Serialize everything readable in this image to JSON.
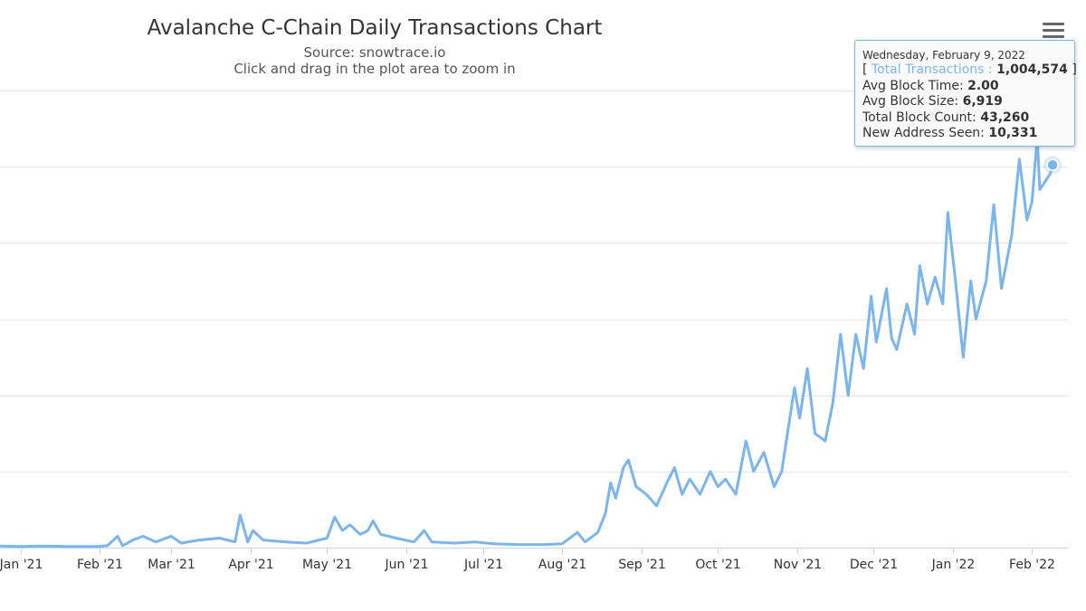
{
  "header": {
    "title": "Avalanche C-Chain Daily Transactions Chart",
    "subtitle": "Source: snowtrace.io",
    "hint": "Click and drag in the plot area to zoom in"
  },
  "menu": {
    "icon": "hamburger-menu-icon"
  },
  "colors": {
    "series": "#7cb5ec",
    "grid": "#e6e6e6",
    "axis": "#ccd6eb",
    "text": "#333333"
  },
  "tooltip": {
    "date": "Wednesday, February 9, 2022",
    "open_bracket": "[",
    "series_name": "Total Transactions",
    "separator": ":",
    "series_value": "1,004,574",
    "close_bracket": "]",
    "rows": [
      {
        "label": "Avg Block Time:",
        "value": "2.00"
      },
      {
        "label": "Avg Block Size:",
        "value": "6,919"
      },
      {
        "label": "Total Block Count:",
        "value": "43,260"
      },
      {
        "label": "New Address Seen:",
        "value": "10,331"
      }
    ]
  },
  "chart_data": {
    "type": "line",
    "title": "Avalanche C-Chain Daily Transactions Chart",
    "subtitle": "Source: snowtrace.io",
    "xlabel": "",
    "ylabel": "",
    "grid": true,
    "y_gridlines": 6,
    "ylim": [
      0,
      1200000
    ],
    "xlim": [
      "2020-12-24",
      "2022-02-15"
    ],
    "x_tick_labels": [
      "Jan '21",
      "Feb '21",
      "Mar '21",
      "Apr '21",
      "May '21",
      "Jun '21",
      "Jul '21",
      "Aug '21",
      "Sep '21",
      "Oct '21",
      "Nov '21",
      "Dec '21",
      "Jan '22",
      "Feb '22"
    ],
    "x_tick_dates": [
      "2021-01-01",
      "2021-02-01",
      "2021-03-01",
      "2021-04-01",
      "2021-05-01",
      "2021-06-01",
      "2021-07-01",
      "2021-08-01",
      "2021-09-01",
      "2021-10-01",
      "2021-11-01",
      "2021-12-01",
      "2022-01-01",
      "2022-02-01"
    ],
    "highlight": {
      "x": "2022-02-09",
      "y": 1004574
    },
    "series": [
      {
        "name": "Total Transactions",
        "color": "#7cb5ec",
        "points": [
          [
            "2020-12-24",
            4000
          ],
          [
            "2021-01-01",
            3000
          ],
          [
            "2021-01-10",
            4000
          ],
          [
            "2021-01-20",
            3000
          ],
          [
            "2021-01-31",
            3000
          ],
          [
            "2021-02-04",
            5000
          ],
          [
            "2021-02-08",
            30000
          ],
          [
            "2021-02-10",
            5000
          ],
          [
            "2021-02-14",
            20000
          ],
          [
            "2021-02-18",
            30000
          ],
          [
            "2021-02-23",
            15000
          ],
          [
            "2021-03-01",
            30000
          ],
          [
            "2021-03-05",
            12000
          ],
          [
            "2021-03-12",
            20000
          ],
          [
            "2021-03-20",
            25000
          ],
          [
            "2021-03-26",
            15000
          ],
          [
            "2021-03-28",
            85000
          ],
          [
            "2021-03-31",
            15000
          ],
          [
            "2021-04-02",
            45000
          ],
          [
            "2021-04-06",
            20000
          ],
          [
            "2021-04-15",
            15000
          ],
          [
            "2021-04-23",
            12000
          ],
          [
            "2021-05-01",
            25000
          ],
          [
            "2021-05-04",
            80000
          ],
          [
            "2021-05-07",
            45000
          ],
          [
            "2021-05-10",
            60000
          ],
          [
            "2021-05-14",
            35000
          ],
          [
            "2021-05-17",
            45000
          ],
          [
            "2021-05-19",
            70000
          ],
          [
            "2021-05-22",
            35000
          ],
          [
            "2021-05-28",
            25000
          ],
          [
            "2021-06-04",
            15000
          ],
          [
            "2021-06-08",
            45000
          ],
          [
            "2021-06-11",
            15000
          ],
          [
            "2021-06-20",
            12000
          ],
          [
            "2021-06-28",
            15000
          ],
          [
            "2021-07-05",
            10000
          ],
          [
            "2021-07-15",
            8000
          ],
          [
            "2021-07-25",
            8000
          ],
          [
            "2021-08-01",
            10000
          ],
          [
            "2021-08-07",
            40000
          ],
          [
            "2021-08-10",
            15000
          ],
          [
            "2021-08-15",
            40000
          ],
          [
            "2021-08-18",
            90000
          ],
          [
            "2021-08-20",
            170000
          ],
          [
            "2021-08-22",
            130000
          ],
          [
            "2021-08-25",
            210000
          ],
          [
            "2021-08-27",
            230000
          ],
          [
            "2021-08-30",
            160000
          ],
          [
            "2021-09-03",
            140000
          ],
          [
            "2021-09-07",
            110000
          ],
          [
            "2021-09-11",
            170000
          ],
          [
            "2021-09-14",
            210000
          ],
          [
            "2021-09-17",
            140000
          ],
          [
            "2021-09-20",
            180000
          ],
          [
            "2021-09-24",
            140000
          ],
          [
            "2021-09-28",
            200000
          ],
          [
            "2021-10-01",
            160000
          ],
          [
            "2021-10-04",
            180000
          ],
          [
            "2021-10-08",
            140000
          ],
          [
            "2021-10-12",
            280000
          ],
          [
            "2021-10-15",
            200000
          ],
          [
            "2021-10-19",
            250000
          ],
          [
            "2021-10-23",
            160000
          ],
          [
            "2021-10-26",
            200000
          ],
          [
            "2021-10-28",
            290000
          ],
          [
            "2021-10-31",
            420000
          ],
          [
            "2021-11-02",
            340000
          ],
          [
            "2021-11-05",
            470000
          ],
          [
            "2021-11-08",
            300000
          ],
          [
            "2021-11-12",
            280000
          ],
          [
            "2021-11-15",
            380000
          ],
          [
            "2021-11-18",
            560000
          ],
          [
            "2021-11-21",
            400000
          ],
          [
            "2021-11-24",
            560000
          ],
          [
            "2021-11-27",
            470000
          ],
          [
            "2021-11-30",
            660000
          ],
          [
            "2021-12-02",
            540000
          ],
          [
            "2021-12-06",
            680000
          ],
          [
            "2021-12-08",
            550000
          ],
          [
            "2021-12-10",
            520000
          ],
          [
            "2021-12-14",
            640000
          ],
          [
            "2021-12-17",
            560000
          ],
          [
            "2021-12-19",
            740000
          ],
          [
            "2021-12-22",
            640000
          ],
          [
            "2021-12-25",
            710000
          ],
          [
            "2021-12-28",
            640000
          ],
          [
            "2021-12-30",
            880000
          ],
          [
            "2022-01-02",
            700000
          ],
          [
            "2022-01-05",
            500000
          ],
          [
            "2022-01-08",
            700000
          ],
          [
            "2022-01-10",
            600000
          ],
          [
            "2022-01-14",
            700000
          ],
          [
            "2022-01-17",
            900000
          ],
          [
            "2022-01-20",
            680000
          ],
          [
            "2022-01-24",
            820000
          ],
          [
            "2022-01-27",
            1020000
          ],
          [
            "2022-01-30",
            860000
          ],
          [
            "2022-02-01",
            910000
          ],
          [
            "2022-02-03",
            1080000
          ],
          [
            "2022-02-04",
            940000
          ],
          [
            "2022-02-06",
            960000
          ],
          [
            "2022-02-08",
            980000
          ],
          [
            "2022-02-09",
            1004574
          ]
        ]
      }
    ]
  }
}
